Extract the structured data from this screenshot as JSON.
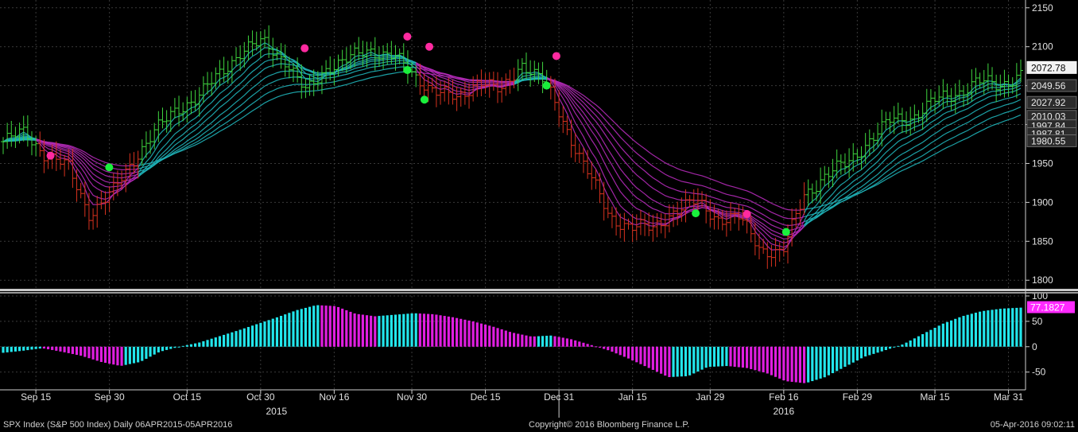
{
  "chart_data": [
    {
      "type": "candlestick",
      "title": "",
      "ylim": [
        1790,
        2160
      ],
      "y_ticks": [
        1800,
        1850,
        1900,
        1950,
        2000,
        2050,
        2100,
        2150
      ],
      "x_ticks": [
        "Sep 15",
        "Sep 30",
        "Oct 15",
        "Oct 30",
        "Nov 16",
        "Nov 30",
        "Dec 15",
        "Dec 31",
        "Jan 15",
        "Jan 29",
        "Feb 16",
        "Feb 29",
        "Mar 15",
        "Mar 31"
      ],
      "year_labels": [
        "2015",
        "2016"
      ],
      "grid": true,
      "price_key": [
        1978,
        1990,
        1960,
        1945,
        1885,
        1910,
        1955,
        1990,
        2020,
        2035,
        2065,
        2095,
        2105,
        2085,
        2040,
        2075,
        2085,
        2095,
        2090,
        2060,
        2045,
        2030,
        2060,
        2040,
        2080,
        2055,
        1995,
        1940,
        1880,
        1870,
        1865,
        1890,
        1900,
        1880,
        1880,
        1840,
        1835,
        1910,
        1935,
        1950,
        1980,
        2005,
        2010,
        2030,
        2040,
        2055,
        2050,
        2065
      ],
      "last_labels": [
        {
          "value": "2072.78",
          "y": 2072.78,
          "color": "#ffffff"
        },
        {
          "value": "2049.56",
          "y": 2049.56,
          "color": "#cfcfcf"
        },
        {
          "value": "2027.92",
          "y": 2027.92,
          "color": "#cfcfcf"
        },
        {
          "value": "2010.03",
          "y": 2010.03,
          "color": "#cfcfcf"
        },
        {
          "value": "1997.84",
          "y": 1997.84,
          "color": "#cfcfcf"
        },
        {
          "value": "1987.81",
          "y": 1987.81,
          "color": "#cfcfcf"
        },
        {
          "value": "1980.55",
          "y": 1980.55,
          "color": "#cfcfcf"
        }
      ],
      "signals_buy": [
        {
          "date": "Sep 30",
          "y": 1945
        },
        {
          "date": "Nov 30",
          "y": 2070
        },
        {
          "date": "Dec 3",
          "y": 2032
        },
        {
          "date": "Dec 28",
          "y": 2050
        },
        {
          "date": "Jan 28",
          "y": 1886
        },
        {
          "date": "Feb 16",
          "y": 1862
        }
      ],
      "signals_sell": [
        {
          "date": "Sep 18",
          "y": 1960
        },
        {
          "date": "Nov 9",
          "y": 2098
        },
        {
          "date": "Nov 30",
          "y": 2113
        },
        {
          "date": "Dec 4",
          "y": 2100
        },
        {
          "date": "Dec 30",
          "y": 2088
        },
        {
          "date": "Feb 8",
          "y": 1885
        }
      ]
    },
    {
      "type": "bar",
      "ylim": [
        -85,
        100
      ],
      "y_ticks": [
        -50,
        0,
        50,
        100
      ],
      "last_value": "77.1827",
      "colors": {
        "positive_rising": "#22e6ec",
        "negative": "#e01ee0"
      },
      "key_values": [
        -12,
        -8,
        -3,
        -10,
        -18,
        -30,
        -38,
        -30,
        -10,
        0,
        8,
        20,
        32,
        45,
        58,
        72,
        82,
        80,
        65,
        60,
        63,
        66,
        64,
        58,
        50,
        40,
        28,
        20,
        22,
        15,
        4,
        -8,
        -24,
        -42,
        -60,
        -58,
        -40,
        -38,
        -42,
        -52,
        -68,
        -72,
        -60,
        -40,
        -20,
        -8,
        5,
        25,
        45,
        60,
        70,
        75,
        77
      ]
    }
  ],
  "footer": {
    "left": "SPX Index (S&P 500 Index)  Daily 06APR2015-05APR2016",
    "center": "Copyright© 2016 Bloomberg Finance L.P.",
    "right": "05-Apr-2016 09:02:11"
  }
}
